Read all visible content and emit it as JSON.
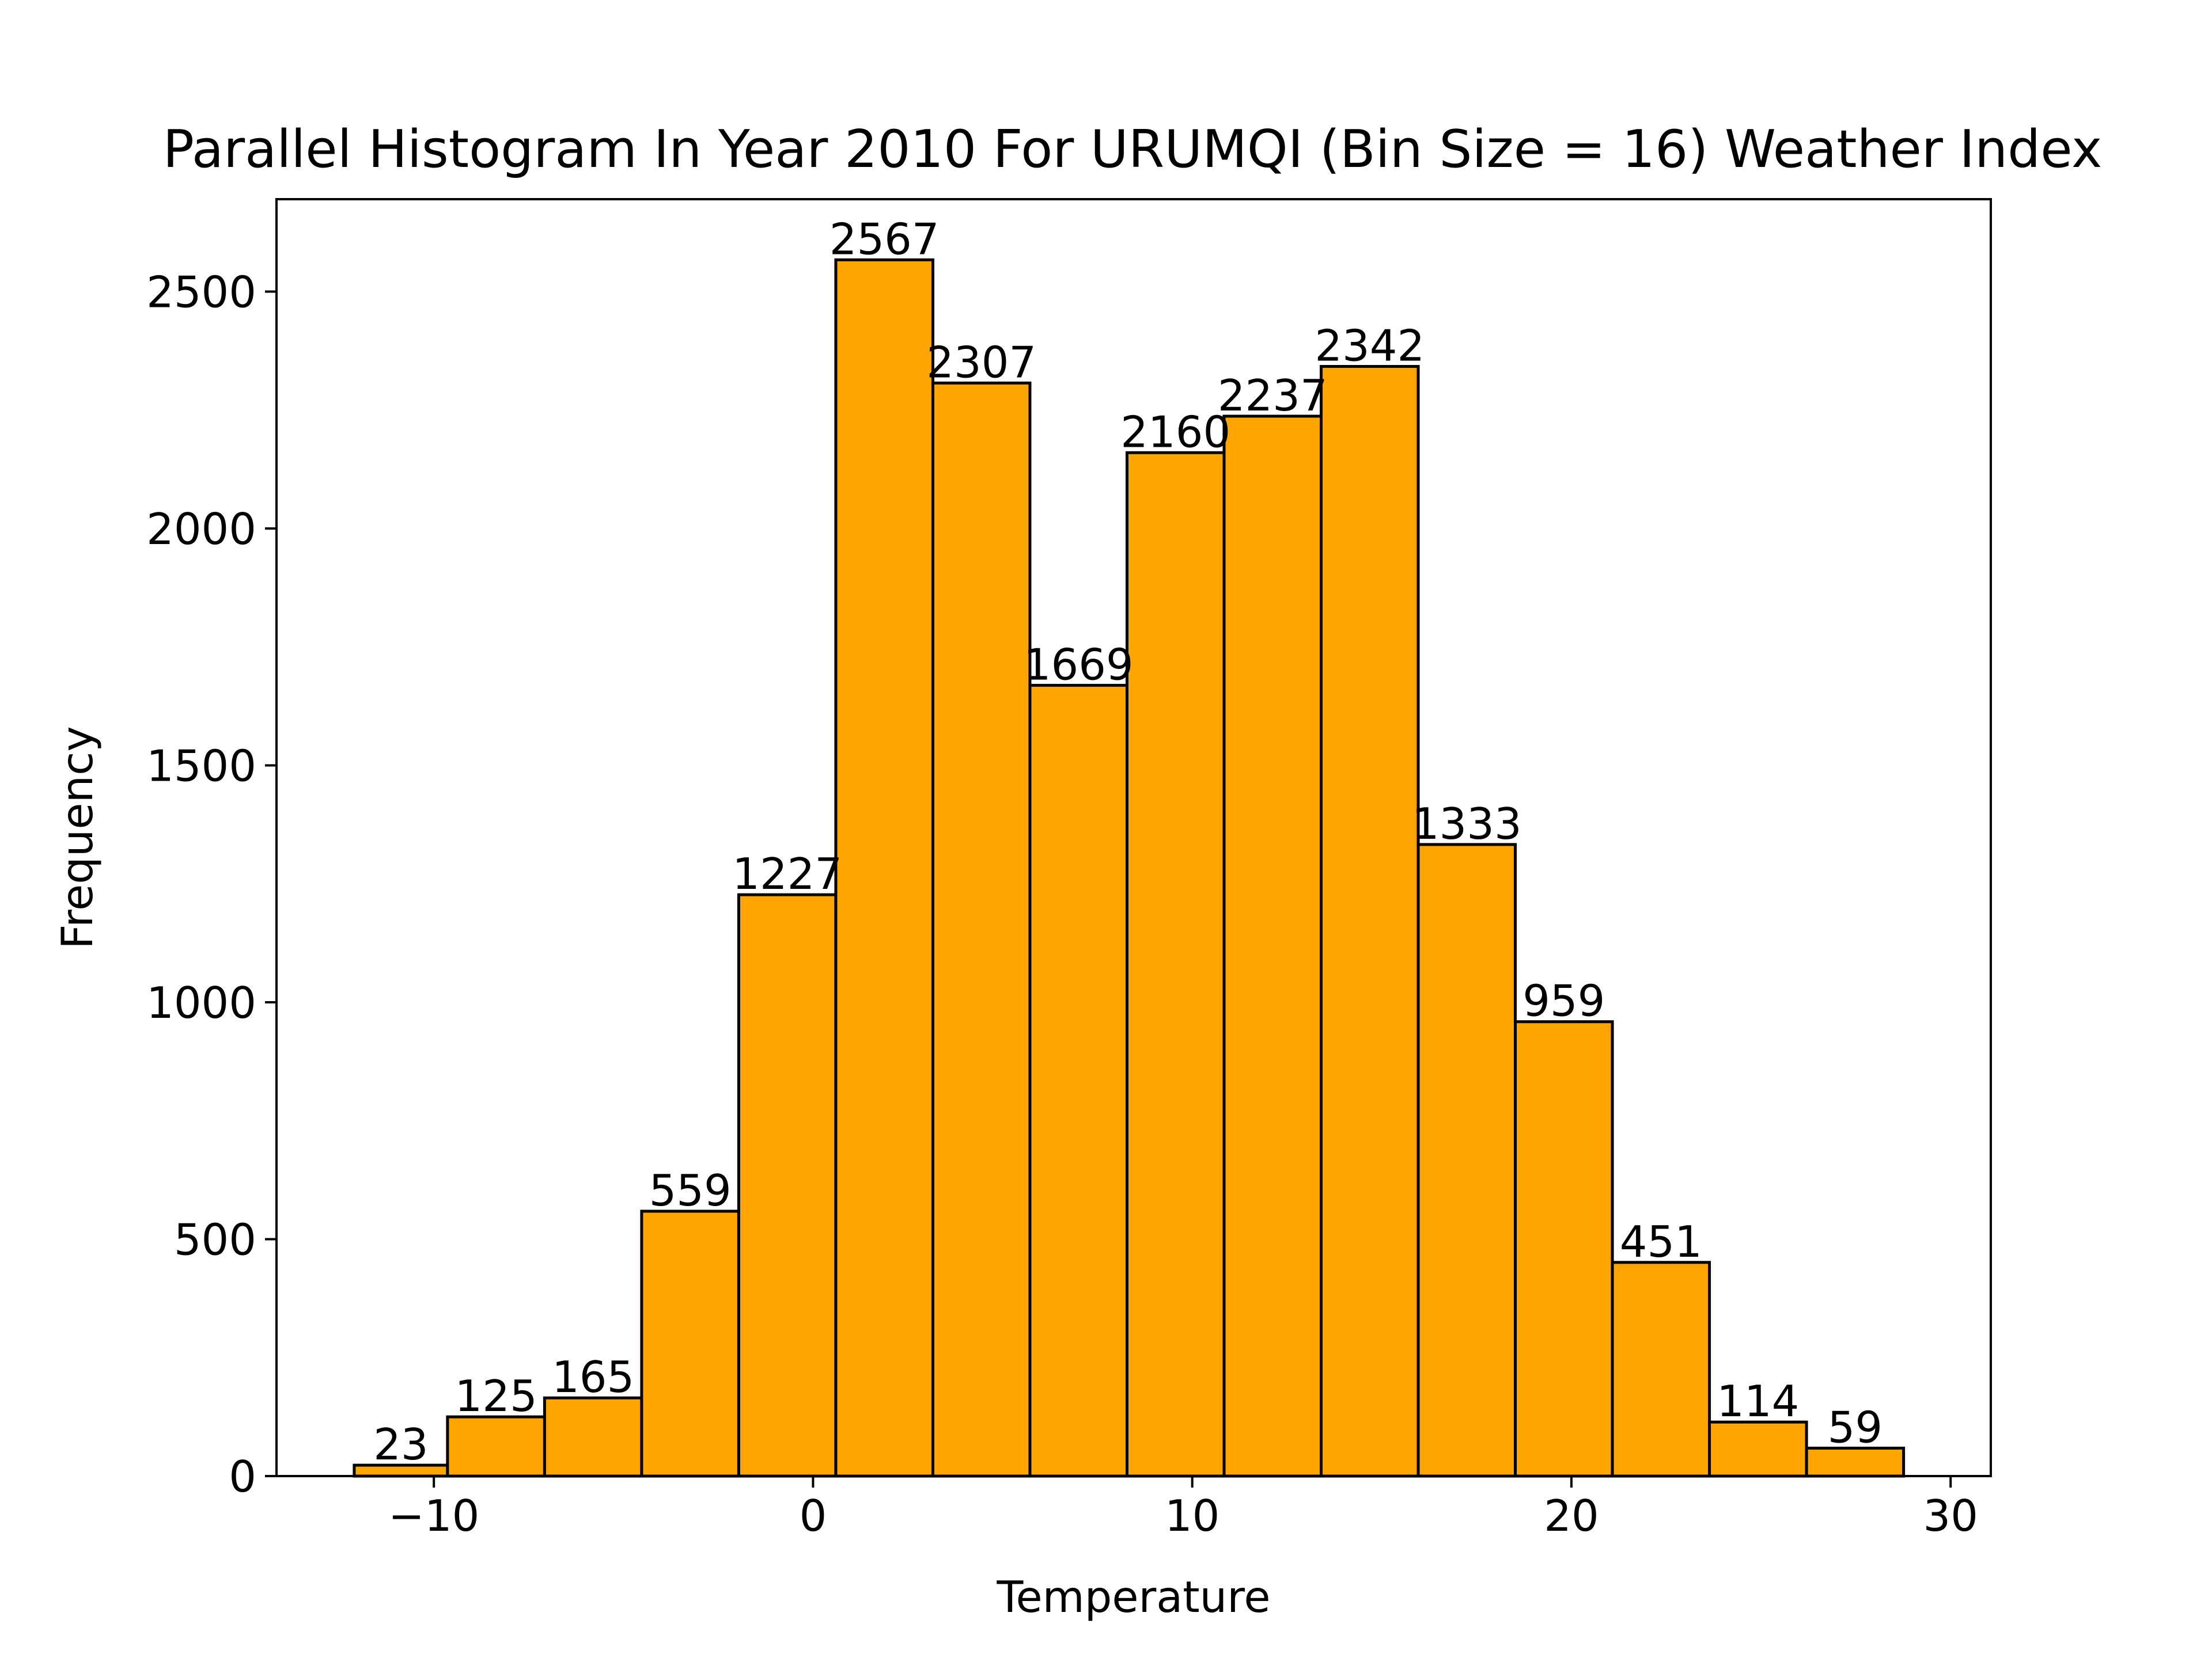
{
  "chart_data": {
    "type": "bar",
    "title": "Parallel Histogram In Year 2010 For URUMQI (Bin Size = 16) Weather Index",
    "xlabel": "Temperature",
    "ylabel": "Frequency",
    "bin_edges": [
      -12.1,
      -9.64,
      -7.08,
      -4.52,
      -1.96,
      0.6,
      3.16,
      5.72,
      8.28,
      10.84,
      13.4,
      15.96,
      18.52,
      21.08,
      23.64,
      26.2,
      28.76
    ],
    "values": [
      23,
      125,
      165,
      559,
      1227,
      2567,
      2307,
      1669,
      2160,
      2237,
      2342,
      1333,
      959,
      451,
      114,
      59
    ],
    "value_labels": [
      "23",
      "125",
      "165",
      "559",
      "1227",
      "2567",
      "2307",
      "1669",
      "2160",
      "2237",
      "2342",
      "1333",
      "959",
      "451",
      "114",
      "59"
    ],
    "xlim": [
      -14.15,
      31.06
    ],
    "ylim": [
      0,
      2695
    ],
    "x_ticks": [
      -10,
      0,
      10,
      20,
      30
    ],
    "x_tick_labels": [
      "−10",
      "0",
      "10",
      "20",
      "30"
    ],
    "y_ticks": [
      0,
      500,
      1000,
      1500,
      2000,
      2500
    ],
    "y_tick_labels": [
      "0",
      "500",
      "1000",
      "1500",
      "2000",
      "2500"
    ],
    "colors": {
      "bar_fill": "#FFA500",
      "bar_edge": "#000000",
      "axis": "#000000"
    },
    "grid": false
  }
}
